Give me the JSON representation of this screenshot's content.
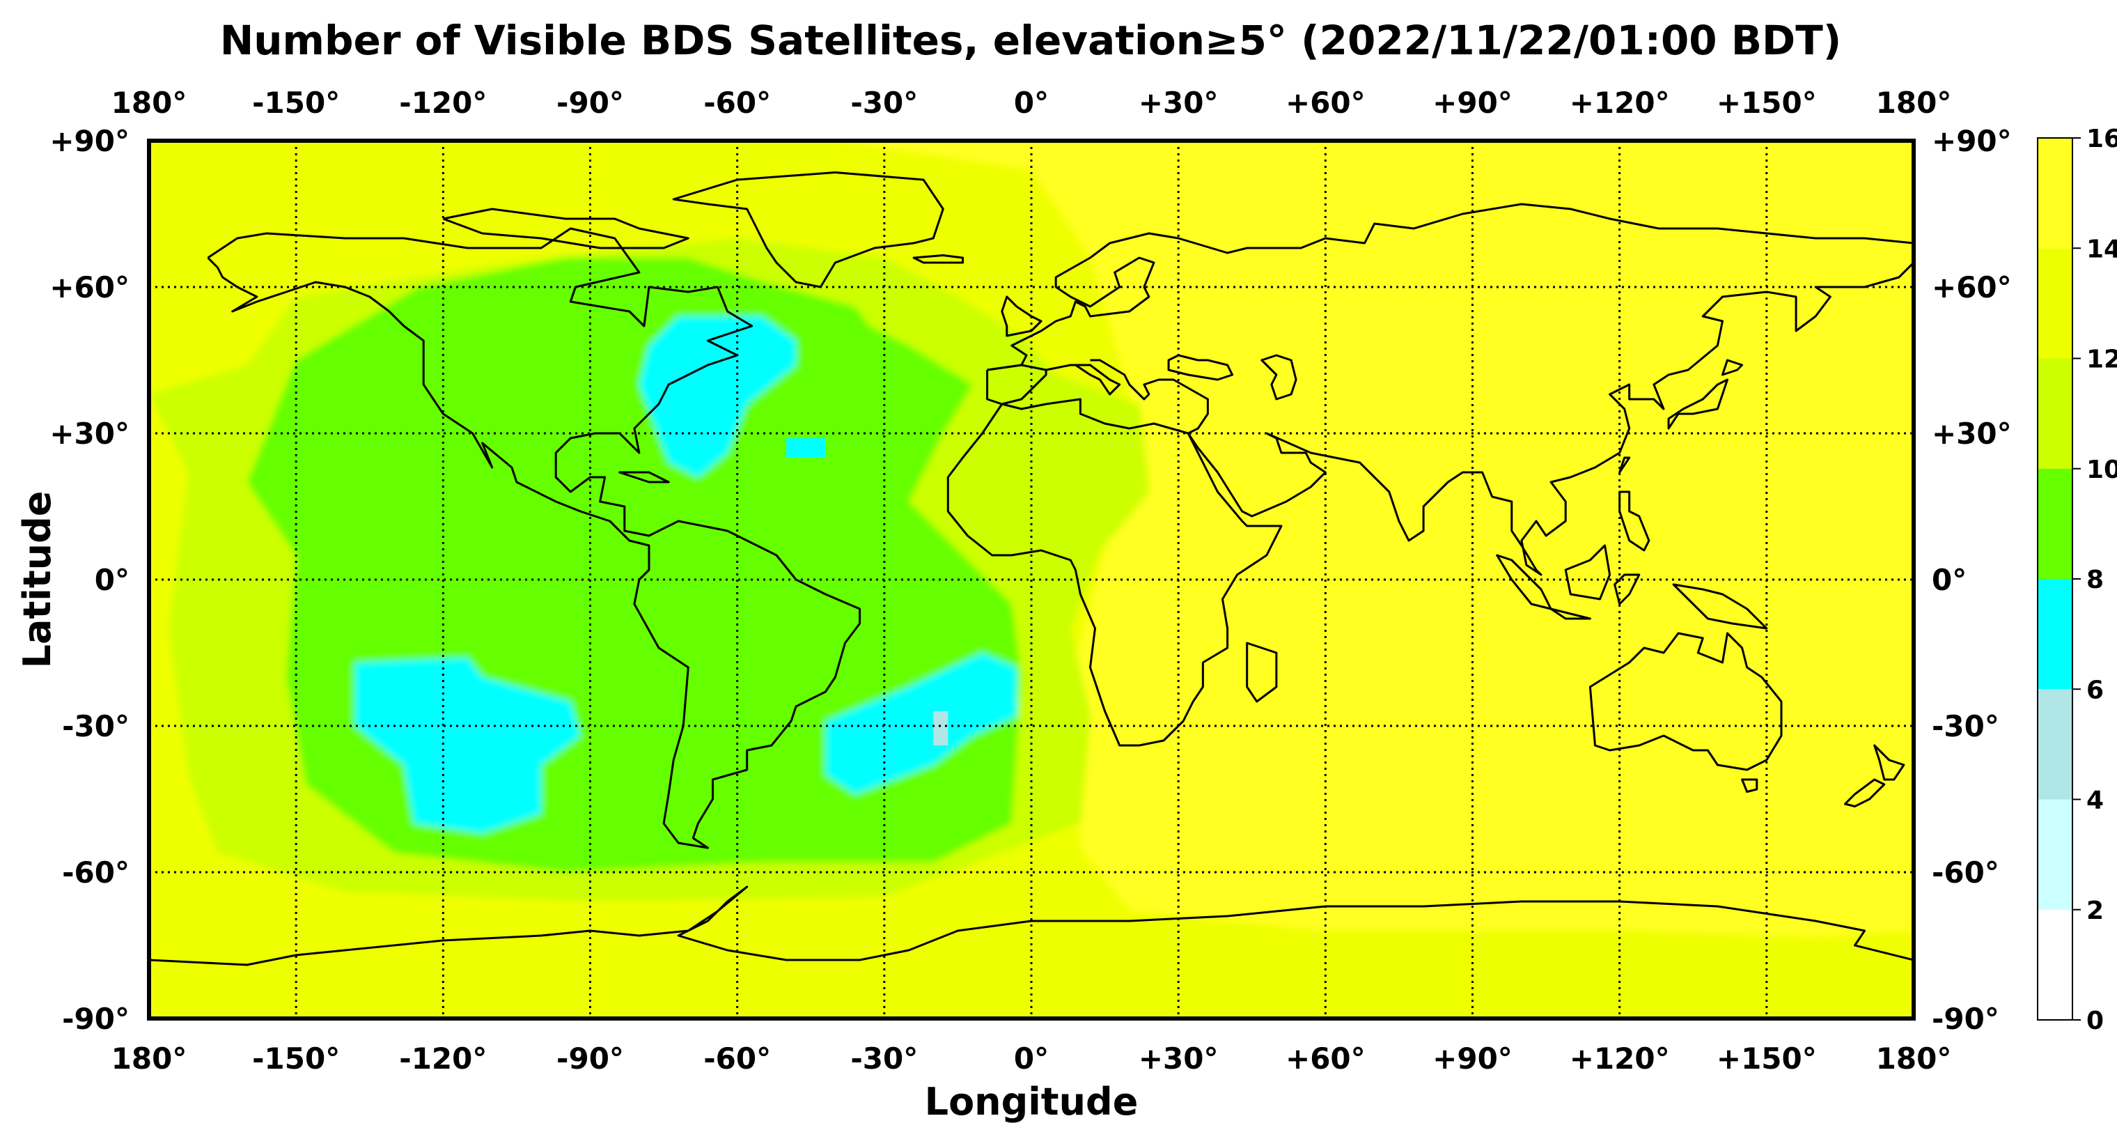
{
  "chart_data": {
    "type": "heatmap",
    "title": "Number of Visible BDS Satellites, elevation≥5° (2022/11/22/01:00 BDT)",
    "xlabel": "Longitude",
    "ylabel": "Latitude",
    "xlim": [
      -180,
      180
    ],
    "ylim": [
      -90,
      90
    ],
    "x_ticks": [
      -180,
      -150,
      -120,
      -90,
      -60,
      -30,
      0,
      30,
      60,
      90,
      120,
      150,
      180
    ],
    "x_tick_labels": [
      "180°",
      "-150°",
      "-120°",
      "-90°",
      "-60°",
      "-30°",
      "0°",
      "+30°",
      "+60°",
      "+90°",
      "+120°",
      "+150°",
      "180°"
    ],
    "y_ticks": [
      90,
      60,
      30,
      0,
      -30,
      -60,
      -90
    ],
    "y_tick_labels": [
      "+90°",
      "+60°",
      "+30°",
      "0°",
      "-30°",
      "-60°",
      "-90°"
    ],
    "grid": true,
    "grid_style": "dotted",
    "colorbar": {
      "placement": "right",
      "levels": [
        0,
        2,
        4,
        6,
        8,
        10,
        12,
        14,
        16
      ],
      "colors": [
        "#ffffff",
        "#ccffff",
        "#b0e6e6",
        "#00ffff",
        "#66ff00",
        "#ccff00",
        "#eeff00",
        "#ffff22"
      ]
    },
    "regions": [
      {
        "value_range": [
          14,
          16
        ],
        "description": "Eastern hemisphere, Europe, Asia, Africa, Indian Ocean, Australia, Pacific west of 150W, Antarctica interior",
        "lon": [
          5,
          180
        ],
        "lat": [
          -75,
          90
        ]
      },
      {
        "value_range": [
          12,
          14
        ],
        "description": "Eastern Pacific, Arctic, Southern Ocean ring",
        "lon": [
          -180,
          10
        ],
        "lat": [
          -90,
          90
        ]
      },
      {
        "value_range": [
          10,
          12
        ],
        "description": "Band around the Americas and Atlantic"
      },
      {
        "value_range": [
          8,
          10
        ],
        "description": "South Pacific, South America, Atlantic, North Atlantic surroundings"
      },
      {
        "value_range": [
          6,
          8
        ],
        "description": "Eastern North America / western North Atlantic",
        "lon": [
          -78,
          -48
        ],
        "lat": [
          22,
          54
        ]
      },
      {
        "value_range": [
          6,
          8
        ],
        "description": "South Pacific west of Chile",
        "lon": [
          -138,
          -92
        ],
        "lat": [
          -52,
          -15
        ]
      },
      {
        "value_range": [
          6,
          8
        ],
        "description": "South Atlantic",
        "lon": [
          -42,
          -3
        ],
        "lat": [
          -45,
          -15
        ]
      },
      {
        "value_range": [
          4,
          6
        ],
        "description": "Small patch in South Atlantic",
        "lon": [
          -21,
          -17
        ],
        "lat": [
          -34,
          -28
        ]
      }
    ]
  }
}
